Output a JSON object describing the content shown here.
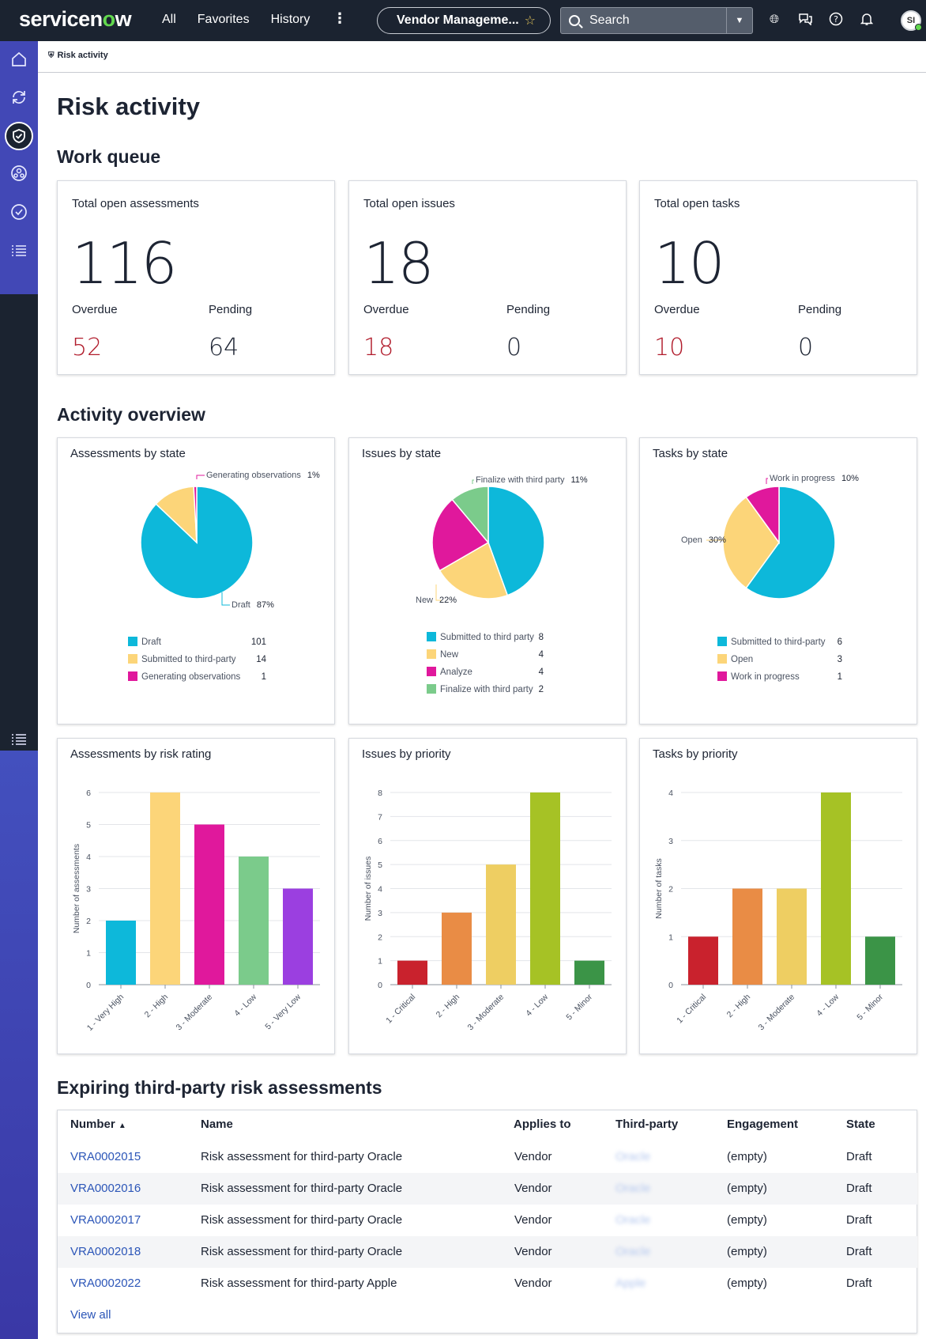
{
  "header": {
    "logo_pre": "servicen",
    "logo_o": "o",
    "logo_post": "w",
    "nav": [
      "All",
      "Favorites",
      "History"
    ],
    "more_icon": "more-vertical-icon",
    "scope": "Vendor Manageme...",
    "search_placeholder": "Search",
    "avatar_initials": "SI"
  },
  "breadcrumb": {
    "label": "Risk activity"
  },
  "page_title": "Risk activity",
  "work_queue": {
    "title": "Work queue",
    "cards": [
      {
        "label": "Total open assessments",
        "total": "116",
        "overdue_label": "Overdue",
        "overdue": "52",
        "pending_label": "Pending",
        "pending": "64"
      },
      {
        "label": "Total open issues",
        "total": "18",
        "overdue_label": "Overdue",
        "overdue": "18",
        "pending_label": "Pending",
        "pending": "0"
      },
      {
        "label": "Total open tasks",
        "total": "10",
        "overdue_label": "Overdue",
        "overdue": "10",
        "pending_label": "Pending",
        "pending": "0"
      }
    ]
  },
  "activity_overview": {
    "title": "Activity overview"
  },
  "colors": {
    "cyan": "#0db8da",
    "yellow": "#fcd579",
    "magenta": "#e0189c",
    "green": "#7bcb8b",
    "purple": "#9b3fe0",
    "red": "#c9222d",
    "orange": "#e98c45",
    "gold": "#eece62",
    "lime": "#a6c225",
    "darkgreen": "#3b9447",
    "overdue": "#b11c2c"
  },
  "chart_data": [
    {
      "type": "pie",
      "title": "Assessments by state",
      "slices": [
        {
          "name": "Draft",
          "value": 101,
          "pct_label": "87%",
          "color": "#0db8da"
        },
        {
          "name": "Submitted to third-party",
          "value": 14,
          "pct_label": "",
          "color": "#fcd579"
        },
        {
          "name": "Generating observations",
          "value": 1,
          "pct_label": "1%",
          "color": "#e0189c"
        }
      ],
      "callouts": [
        {
          "slice": 2,
          "text": "Generating observations",
          "pct": "1%"
        },
        {
          "slice": 0,
          "text": "Draft",
          "pct": "87%"
        }
      ]
    },
    {
      "type": "pie",
      "title": "Issues by state",
      "slices": [
        {
          "name": "Submitted to third party",
          "value": 8,
          "color": "#0db8da"
        },
        {
          "name": "New",
          "value": 4,
          "color": "#fcd579"
        },
        {
          "name": "Analyze",
          "value": 4,
          "color": "#e0189c"
        },
        {
          "name": "Finalize with third party",
          "value": 2,
          "color": "#7bcb8b"
        }
      ],
      "callouts": [
        {
          "slice": 3,
          "text": "Finalize with third party",
          "pct": "11%"
        },
        {
          "slice": 1,
          "text": "New",
          "pct": "22%"
        }
      ]
    },
    {
      "type": "pie",
      "title": "Tasks by state",
      "slices": [
        {
          "name": "Submitted to third-party",
          "value": 6,
          "color": "#0db8da"
        },
        {
          "name": "Open",
          "value": 3,
          "color": "#fcd579"
        },
        {
          "name": "Work in progress",
          "value": 1,
          "color": "#e0189c"
        }
      ],
      "callouts": [
        {
          "slice": 2,
          "text": "Work in progress",
          "pct": "10%"
        },
        {
          "slice": 1,
          "text": "Open",
          "pct": "30%"
        }
      ]
    },
    {
      "type": "bar",
      "title": "Assessments by risk rating",
      "ylabel": "Number of assessments",
      "categories": [
        "1 - Very High",
        "2 - High",
        "3 - Moderate",
        "4 - Low",
        "5 - Very Low"
      ],
      "values": [
        2,
        6,
        5,
        4,
        3
      ],
      "ylim": [
        0,
        6
      ],
      "yticks": [
        0,
        1,
        2,
        3,
        4,
        5,
        6
      ],
      "colors": [
        "#0db8da",
        "#fcd579",
        "#e0189c",
        "#7bcb8b",
        "#9b3fe0"
      ]
    },
    {
      "type": "bar",
      "title": "Issues by priority",
      "ylabel": "Number of issues",
      "categories": [
        "1 - Critical",
        "2 - High",
        "3 - Moderate",
        "4 - Low",
        "5 - Minor"
      ],
      "values": [
        1,
        3,
        5,
        8,
        1
      ],
      "ylim": [
        0,
        8
      ],
      "yticks": [
        0,
        1,
        2,
        3,
        4,
        5,
        6,
        7,
        8
      ],
      "colors": [
        "#c9222d",
        "#e98c45",
        "#eece62",
        "#a6c225",
        "#3b9447"
      ]
    },
    {
      "type": "bar",
      "title": "Tasks by priority",
      "ylabel": "Number of tasks",
      "categories": [
        "1 - Critical",
        "2 - High",
        "3 - Moderate",
        "4 - Low",
        "5 - Minor"
      ],
      "values": [
        1,
        2,
        2,
        4,
        1
      ],
      "ylim": [
        0,
        4
      ],
      "yticks": [
        0,
        1,
        2,
        3,
        4
      ],
      "colors": [
        "#c9222d",
        "#e98c45",
        "#eece62",
        "#a6c225",
        "#3b9447"
      ]
    }
  ],
  "expiring": {
    "title": "Expiring third-party risk assessments",
    "columns": [
      "Number",
      "Name",
      "Applies to",
      "Third-party",
      "Engagement",
      "State"
    ],
    "sort_icon": "sort-ascending-icon",
    "rows": [
      {
        "number": "VRA0002015",
        "name": "Risk assessment for third-party Oracle",
        "applies": "Vendor",
        "third_party": "Oracle",
        "engagement": "(empty)",
        "state": "Draft"
      },
      {
        "number": "VRA0002016",
        "name": "Risk assessment for third-party Oracle",
        "applies": "Vendor",
        "third_party": "Oracle",
        "engagement": "(empty)",
        "state": "Draft"
      },
      {
        "number": "VRA0002017",
        "name": "Risk assessment for third-party Oracle",
        "applies": "Vendor",
        "third_party": "Oracle",
        "engagement": "(empty)",
        "state": "Draft"
      },
      {
        "number": "VRA0002018",
        "name": "Risk assessment for third-party Oracle",
        "applies": "Vendor",
        "third_party": "Oracle",
        "engagement": "(empty)",
        "state": "Draft"
      },
      {
        "number": "VRA0002022",
        "name": "Risk assessment for third-party Apple",
        "applies": "Vendor",
        "third_party": "Apple",
        "engagement": "(empty)",
        "state": "Draft"
      }
    ],
    "view_all": "View all"
  }
}
